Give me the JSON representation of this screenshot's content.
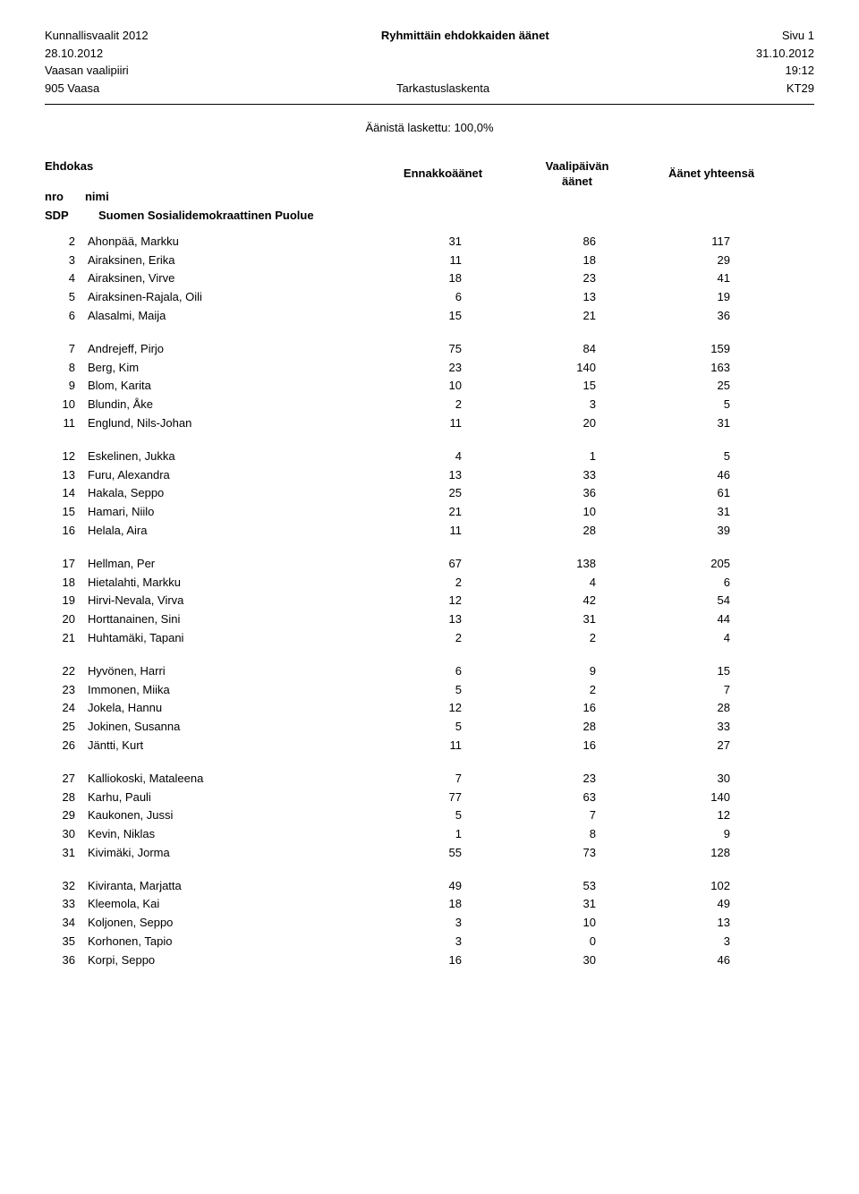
{
  "header": {
    "election": "Kunnallisvaalit 2012",
    "title": "Ryhmittäin ehdokkaiden äänet",
    "page": "Sivu 1",
    "date_left": "28.10.2012",
    "date_right": "31.10.2012",
    "district": "Vaasan vaalipiiri",
    "time": "19:12",
    "area": "905 Vaasa",
    "process": "Tarkastuslaskenta",
    "code": "KT29"
  },
  "counted": "Äänistä laskettu: 100,0%",
  "col_labels": {
    "ehdokas": "Ehdokas",
    "nro": "nro",
    "nimi": "nimi",
    "ennakko": "Ennakkoäänet",
    "vaalipaiva_l1": "Vaalipäivän",
    "vaalipaiva_l2": "äänet",
    "yhteensa": "Äänet yhteensä"
  },
  "party": {
    "abbr": "SDP",
    "name": "Suomen Sosialidemokraattinen Puolue"
  },
  "groups": [
    [
      {
        "n": "2",
        "name": "Ahonpää, Markku",
        "a": "31",
        "b": "86",
        "c": "117"
      },
      {
        "n": "3",
        "name": "Airaksinen, Erika",
        "a": "11",
        "b": "18",
        "c": "29"
      },
      {
        "n": "4",
        "name": "Airaksinen, Virve",
        "a": "18",
        "b": "23",
        "c": "41"
      },
      {
        "n": "5",
        "name": "Airaksinen-Rajala, Oili",
        "a": "6",
        "b": "13",
        "c": "19"
      },
      {
        "n": "6",
        "name": "Alasalmi, Maija",
        "a": "15",
        "b": "21",
        "c": "36"
      }
    ],
    [
      {
        "n": "7",
        "name": "Andrejeff, Pirjo",
        "a": "75",
        "b": "84",
        "c": "159"
      },
      {
        "n": "8",
        "name": "Berg, Kim",
        "a": "23",
        "b": "140",
        "c": "163"
      },
      {
        "n": "9",
        "name": "Blom, Karita",
        "a": "10",
        "b": "15",
        "c": "25"
      },
      {
        "n": "10",
        "name": "Blundin, Åke",
        "a": "2",
        "b": "3",
        "c": "5"
      },
      {
        "n": "11",
        "name": "Englund, Nils-Johan",
        "a": "11",
        "b": "20",
        "c": "31"
      }
    ],
    [
      {
        "n": "12",
        "name": "Eskelinen, Jukka",
        "a": "4",
        "b": "1",
        "c": "5"
      },
      {
        "n": "13",
        "name": "Furu, Alexandra",
        "a": "13",
        "b": "33",
        "c": "46"
      },
      {
        "n": "14",
        "name": "Hakala, Seppo",
        "a": "25",
        "b": "36",
        "c": "61"
      },
      {
        "n": "15",
        "name": "Hamari, Niilo",
        "a": "21",
        "b": "10",
        "c": "31"
      },
      {
        "n": "16",
        "name": "Helala, Aira",
        "a": "11",
        "b": "28",
        "c": "39"
      }
    ],
    [
      {
        "n": "17",
        "name": "Hellman, Per",
        "a": "67",
        "b": "138",
        "c": "205"
      },
      {
        "n": "18",
        "name": "Hietalahti, Markku",
        "a": "2",
        "b": "4",
        "c": "6"
      },
      {
        "n": "19",
        "name": "Hirvi-Nevala, Virva",
        "a": "12",
        "b": "42",
        "c": "54"
      },
      {
        "n": "20",
        "name": "Horttanainen, Sini",
        "a": "13",
        "b": "31",
        "c": "44"
      },
      {
        "n": "21",
        "name": "Huhtamäki, Tapani",
        "a": "2",
        "b": "2",
        "c": "4"
      }
    ],
    [
      {
        "n": "22",
        "name": "Hyvönen, Harri",
        "a": "6",
        "b": "9",
        "c": "15"
      },
      {
        "n": "23",
        "name": "Immonen, Miika",
        "a": "5",
        "b": "2",
        "c": "7"
      },
      {
        "n": "24",
        "name": "Jokela, Hannu",
        "a": "12",
        "b": "16",
        "c": "28"
      },
      {
        "n": "25",
        "name": "Jokinen, Susanna",
        "a": "5",
        "b": "28",
        "c": "33"
      },
      {
        "n": "26",
        "name": "Jäntti, Kurt",
        "a": "11",
        "b": "16",
        "c": "27"
      }
    ],
    [
      {
        "n": "27",
        "name": "Kalliokoski, Mataleena",
        "a": "7",
        "b": "23",
        "c": "30"
      },
      {
        "n": "28",
        "name": "Karhu, Pauli",
        "a": "77",
        "b": "63",
        "c": "140"
      },
      {
        "n": "29",
        "name": "Kaukonen, Jussi",
        "a": "5",
        "b": "7",
        "c": "12"
      },
      {
        "n": "30",
        "name": "Kevin, Niklas",
        "a": "1",
        "b": "8",
        "c": "9"
      },
      {
        "n": "31",
        "name": "Kivimäki, Jorma",
        "a": "55",
        "b": "73",
        "c": "128"
      }
    ],
    [
      {
        "n": "32",
        "name": "Kiviranta, Marjatta",
        "a": "49",
        "b": "53",
        "c": "102"
      },
      {
        "n": "33",
        "name": "Kleemola, Kai",
        "a": "18",
        "b": "31",
        "c": "49"
      },
      {
        "n": "34",
        "name": "Koljonen, Seppo",
        "a": "3",
        "b": "10",
        "c": "13"
      },
      {
        "n": "35",
        "name": "Korhonen, Tapio",
        "a": "3",
        "b": "0",
        "c": "3"
      },
      {
        "n": "36",
        "name": "Korpi, Seppo",
        "a": "16",
        "b": "30",
        "c": "46"
      }
    ]
  ]
}
